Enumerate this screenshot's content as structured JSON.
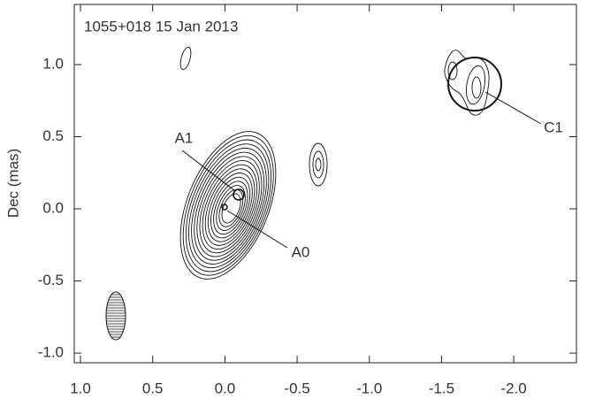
{
  "chart_data": {
    "type": "contour",
    "title": "1055+018  15 Jan 2013",
    "ylabel": "Dec (mas)",
    "xlim": [
      1.043,
      -2.434
    ],
    "ylim": [
      -1.067,
      1.417
    ],
    "xticks": [
      {
        "value": 1,
        "label": "1.0"
      },
      0.5,
      {
        "value": 0,
        "label": "0.0"
      },
      -0.5,
      {
        "value": -1,
        "label": "-1.0"
      },
      -1.5,
      {
        "value": -2,
        "label": "-2.0"
      }
    ],
    "yticks": [
      {
        "value": 1,
        "label": "1.0"
      },
      0.5,
      {
        "value": 0,
        "label": "0.0"
      },
      -0.5,
      {
        "value": -1,
        "label": "-1.0"
      }
    ],
    "annotations": [
      "A1",
      "A0",
      "C1"
    ]
  }
}
